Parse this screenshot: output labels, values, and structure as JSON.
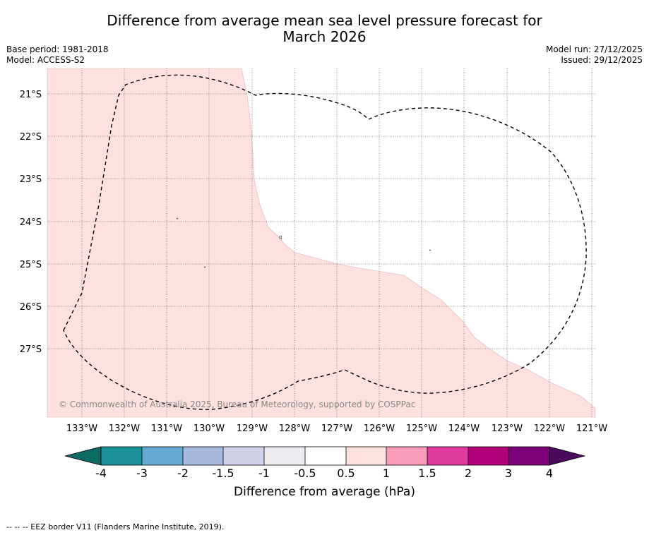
{
  "header": {
    "title_line1": "Difference from average mean sea level pressure forecast for",
    "title_line2": "March 2026",
    "base_period": "Base period: 1981-2018",
    "model": "Model: ACCESS-S2",
    "model_run": "Model run: 27/12/2025",
    "issued": "Issued: 29/12/2025"
  },
  "map": {
    "lat_labels": [
      "21°S",
      "22°S",
      "23°S",
      "24°S",
      "25°S",
      "26°S",
      "27°S"
    ],
    "lon_labels": [
      "133°W",
      "132°W",
      "131°W",
      "130°W",
      "129°W",
      "128°W",
      "127°W",
      "126°W",
      "125°W",
      "124°W",
      "123°W",
      "122°W",
      "121°W"
    ],
    "copyright": "© Commonwealth of Australia 2025, Bureau of Meteorology, supported by COSPPac",
    "island_label": "q",
    "anomaly_fill_color": "#fde0df"
  },
  "colorbar": {
    "ticks": [
      "-4",
      "-3",
      "-2",
      "-1.5",
      "-1",
      "-0.5",
      "0.5",
      "1",
      "1.5",
      "2",
      "3",
      "4"
    ],
    "colors": [
      "#0d6b66",
      "#1b8f98",
      "#65aad1",
      "#a6b9dc",
      "#cfd1e8",
      "#ececf0",
      "#ffffff",
      "#fde0df",
      "#f89db9",
      "#df3a9e",
      "#b00179",
      "#7a0177",
      "#4b0a5e"
    ],
    "label": "Difference from average (hPa)"
  },
  "footer": {
    "eez_note": "--  --  -- EEZ border V11 (Flanders Marine Institute, 2019)."
  }
}
